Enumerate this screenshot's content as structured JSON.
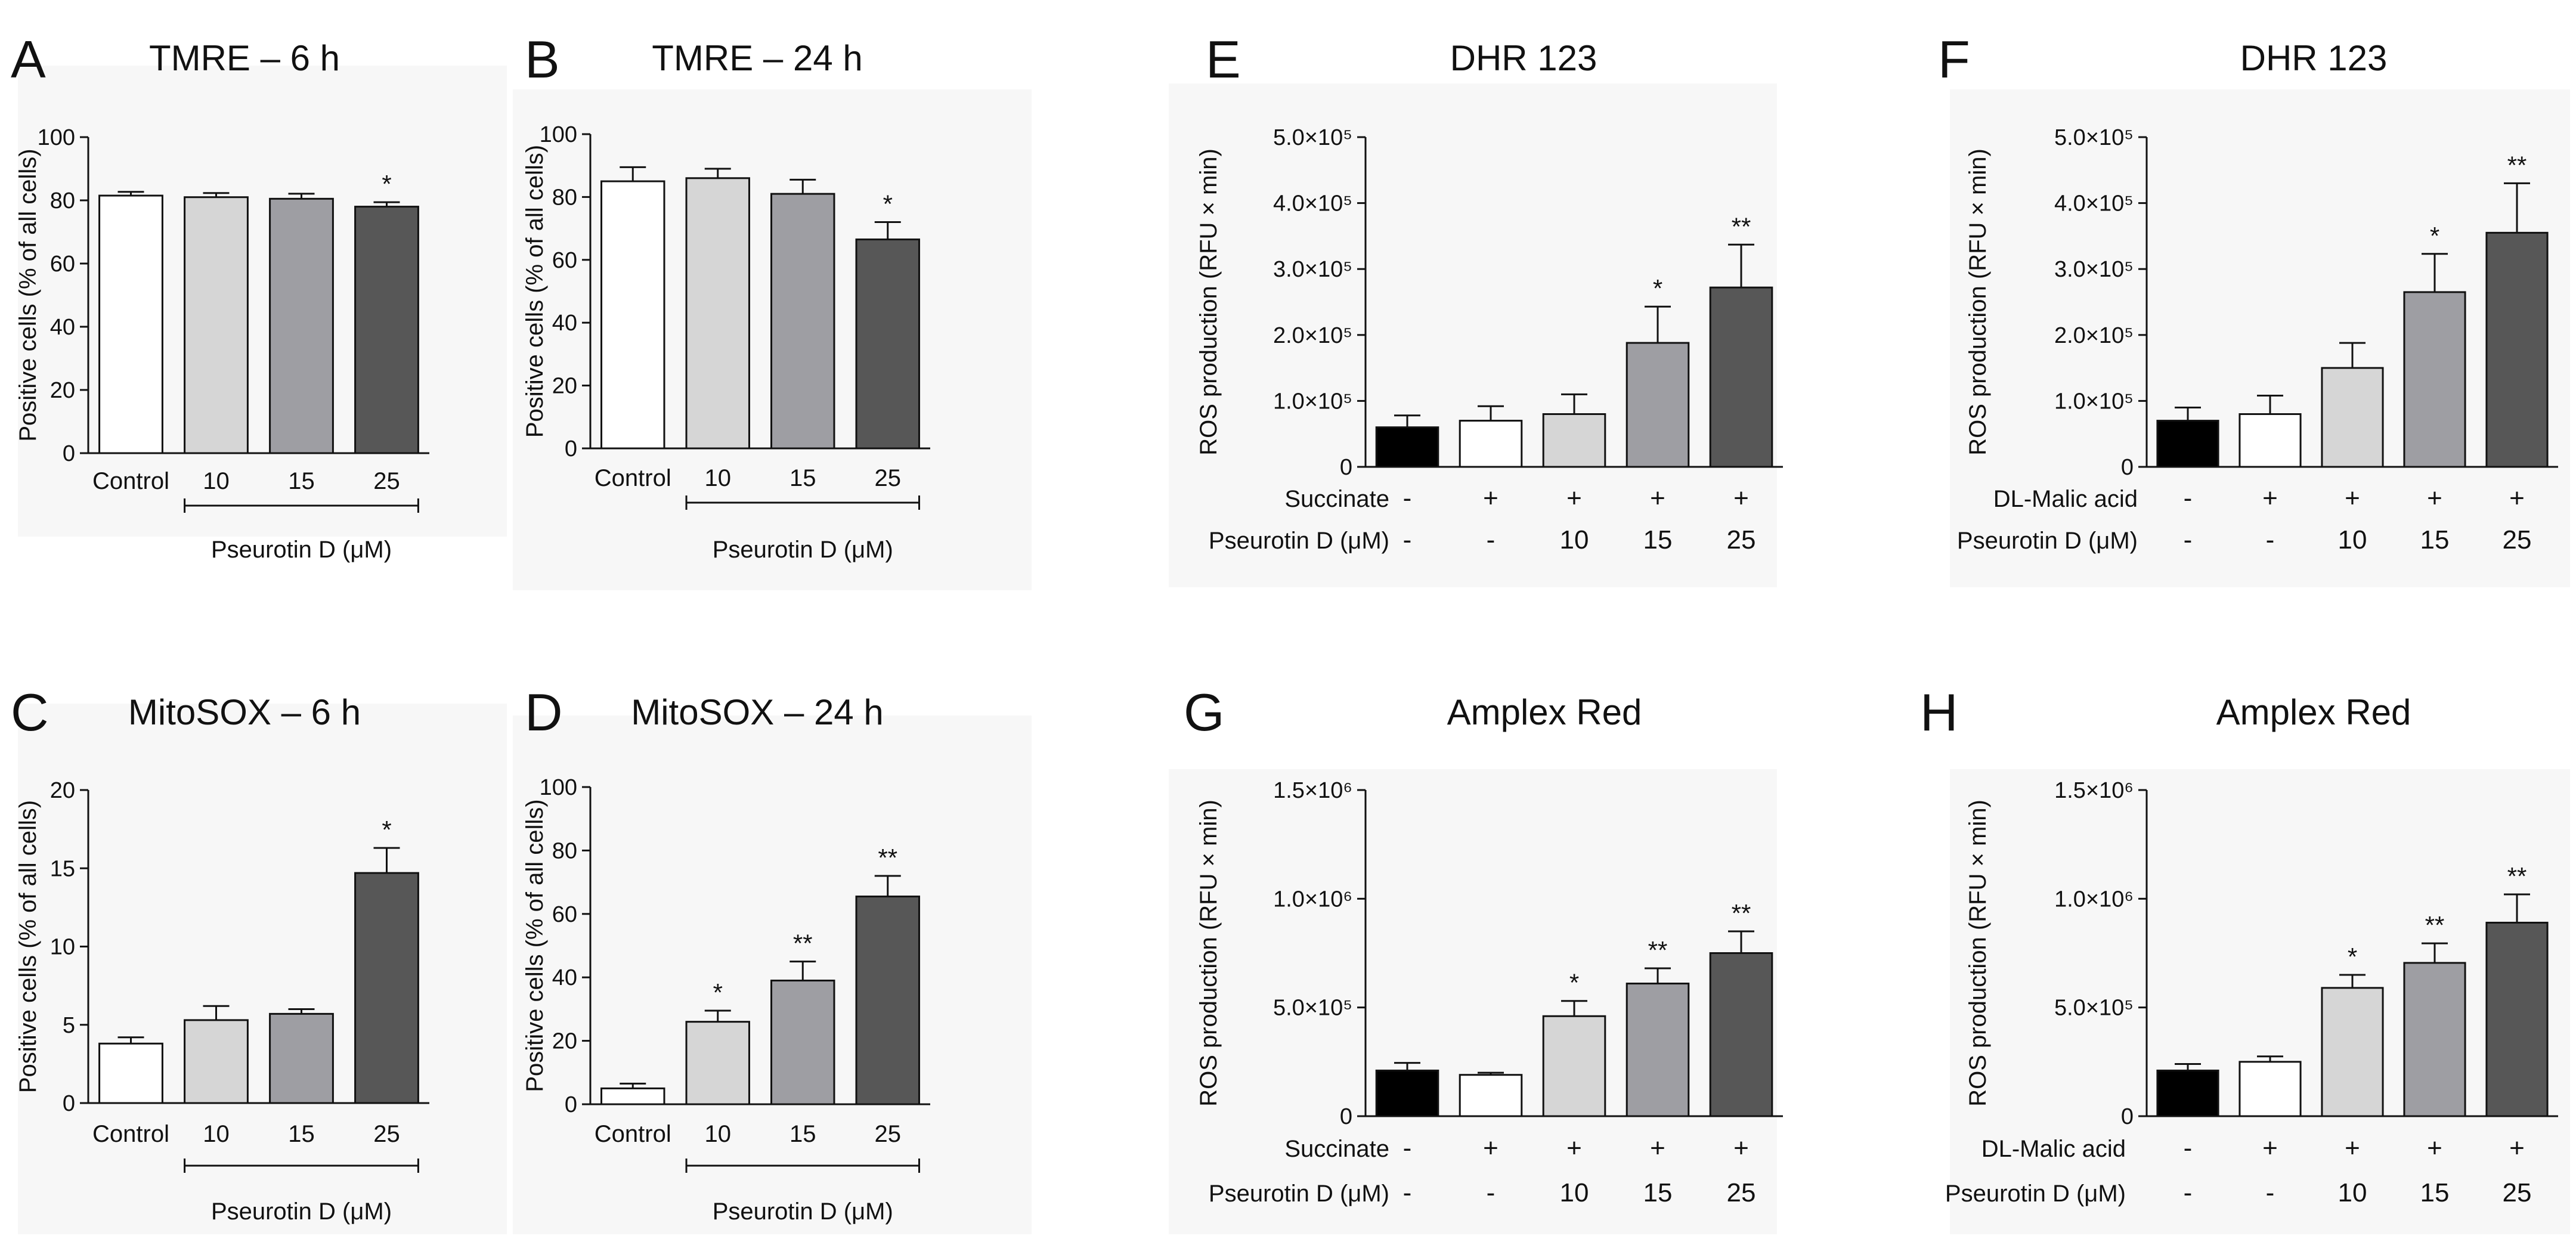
{
  "colors": {
    "white": "#ffffff",
    "lightgray": "#d6d6d6",
    "midgray": "#9e9ea3",
    "darkgray": "#575757",
    "black": "#000000",
    "axis": "#111111"
  },
  "chart_data": [
    {
      "id": "A",
      "type": "bar",
      "letter": "A",
      "title": "TMRE – 6 h",
      "ylabel": "Positive cells (% of all cells)",
      "ylim": [
        0,
        100
      ],
      "yticks": [
        0,
        20,
        40,
        60,
        80,
        100
      ],
      "yticklabels": [
        "0",
        "20",
        "40",
        "60",
        "80",
        "100"
      ],
      "categories": [
        "Control",
        "10",
        "15",
        "25"
      ],
      "values": [
        81.5,
        81,
        80.5,
        78
      ],
      "errors": [
        1.2,
        1.3,
        1.6,
        1.4
      ],
      "fills": [
        "white",
        "lightgray",
        "midgray",
        "darkgray"
      ],
      "significance": [
        "",
        "",
        "",
        "*"
      ],
      "xgroup_label": "Pseurotin D (μM)"
    },
    {
      "id": "B",
      "type": "bar",
      "letter": "B",
      "title": "TMRE – 24 h",
      "ylabel": "Positive cells (% of all cells)",
      "ylim": [
        0,
        100
      ],
      "yticks": [
        0,
        20,
        40,
        60,
        80,
        100
      ],
      "yticklabels": [
        "0",
        "20",
        "40",
        "60",
        "80",
        "100"
      ],
      "categories": [
        "Control",
        "10",
        "15",
        "25"
      ],
      "values": [
        85,
        86,
        81,
        66.5
      ],
      "errors": [
        4.5,
        3,
        4.5,
        5.5
      ],
      "fills": [
        "white",
        "lightgray",
        "midgray",
        "darkgray"
      ],
      "significance": [
        "",
        "",
        "",
        "*"
      ],
      "xgroup_label": "Pseurotin D (μM)"
    },
    {
      "id": "C",
      "type": "bar",
      "letter": "C",
      "title": "MitoSOX – 6 h",
      "ylabel": "Positive cells (% of all cells)",
      "ylim": [
        0,
        20
      ],
      "yticks": [
        0,
        5,
        10,
        15,
        20
      ],
      "yticklabels": [
        "0",
        "5",
        "10",
        "15",
        "20"
      ],
      "categories": [
        "Control",
        "10",
        "15",
        "25"
      ],
      "values": [
        3.8,
        5.3,
        5.7,
        14.7
      ],
      "errors": [
        0.4,
        0.9,
        0.3,
        1.6
      ],
      "fills": [
        "white",
        "lightgray",
        "midgray",
        "darkgray"
      ],
      "significance": [
        "",
        "",
        "",
        "*"
      ],
      "xgroup_label": "Pseurotin D (μM)"
    },
    {
      "id": "D",
      "type": "bar",
      "letter": "D",
      "title": "MitoSOX – 24 h",
      "ylabel": "Positive cells (% of all cells)",
      "ylim": [
        0,
        100
      ],
      "yticks": [
        0,
        20,
        40,
        60,
        80,
        100
      ],
      "yticklabels": [
        "0",
        "20",
        "40",
        "60",
        "80",
        "100"
      ],
      "categories": [
        "Control",
        "10",
        "15",
        "25"
      ],
      "values": [
        5,
        26,
        39,
        65.5
      ],
      "errors": [
        1.5,
        3.5,
        6,
        6.5
      ],
      "fills": [
        "white",
        "lightgray",
        "midgray",
        "darkgray"
      ],
      "significance": [
        "",
        "*",
        "**",
        "**"
      ],
      "xgroup_label": "Pseurotin D (μM)"
    },
    {
      "id": "E",
      "type": "bar",
      "letter": "E",
      "title": "DHR 123",
      "ylabel": "ROS production (RFU × min)",
      "ylim": [
        0,
        500000
      ],
      "yticks": [
        0,
        100000,
        200000,
        300000,
        400000,
        500000
      ],
      "yticklabels": [
        "0",
        "1.0×10⁵",
        "2.0×10⁵",
        "3.0×10⁵",
        "4.0×10⁵",
        "5.0×10⁵"
      ],
      "values": [
        60000,
        70000,
        80000,
        188000,
        272000
      ],
      "errors": [
        18000,
        22000,
        30000,
        55000,
        65000
      ],
      "fills": [
        "black",
        "white",
        "lightgray",
        "midgray",
        "darkgray"
      ],
      "significance": [
        "",
        "",
        "",
        "*",
        "**"
      ],
      "rows": [
        {
          "label": "Succinate",
          "values": [
            "-",
            "+",
            "+",
            "+",
            "+"
          ]
        },
        {
          "label": "Pseurotin D (μM)",
          "values": [
            "-",
            "-",
            "10",
            "15",
            "25"
          ]
        }
      ]
    },
    {
      "id": "F",
      "type": "bar",
      "letter": "F",
      "title": "DHR 123",
      "ylabel": "ROS production (RFU × min)",
      "ylim": [
        0,
        500000
      ],
      "yticks": [
        0,
        100000,
        200000,
        300000,
        400000,
        500000
      ],
      "yticklabels": [
        "0",
        "1.0×10⁵",
        "2.0×10⁵",
        "3.0×10⁵",
        "4.0×10⁵",
        "5.0×10⁵"
      ],
      "values": [
        70000,
        80000,
        150000,
        265000,
        355000
      ],
      "errors": [
        20000,
        28000,
        38000,
        58000,
        75000
      ],
      "fills": [
        "black",
        "white",
        "lightgray",
        "midgray",
        "darkgray"
      ],
      "significance": [
        "",
        "",
        "",
        "*",
        "**"
      ],
      "rows": [
        {
          "label": "DL-Malic acid",
          "values": [
            "-",
            "+",
            "+",
            "+",
            "+"
          ]
        },
        {
          "label": "Pseurotin D (μM)",
          "values": [
            "-",
            "-",
            "10",
            "15",
            "25"
          ]
        }
      ]
    },
    {
      "id": "G",
      "type": "bar",
      "letter": "G",
      "title": "Amplex Red",
      "ylabel": "ROS production (RFU × min)",
      "ylim": [
        0,
        1500000
      ],
      "yticks": [
        0,
        500000,
        1000000,
        1500000
      ],
      "yticklabels": [
        "0",
        "5.0×10⁵",
        "1.0×10⁶",
        "1.5×10⁶"
      ],
      "values": [
        210000,
        190000,
        460000,
        610000,
        750000
      ],
      "errors": [
        35000,
        10000,
        70000,
        70000,
        100000
      ],
      "fills": [
        "black",
        "white",
        "lightgray",
        "midgray",
        "darkgray"
      ],
      "significance": [
        "",
        "",
        "*",
        "**",
        "**"
      ],
      "rows": [
        {
          "label": "Succinate",
          "values": [
            "-",
            "+",
            "+",
            "+",
            "+"
          ]
        },
        {
          "label": "Pseurotin D (μM)",
          "values": [
            "-",
            "-",
            "10",
            "15",
            "25"
          ]
        }
      ]
    },
    {
      "id": "H",
      "type": "bar",
      "letter": "H",
      "title": "Amplex Red",
      "ylabel": "ROS production (RFU × min)",
      "ylim": [
        0,
        1500000
      ],
      "yticks": [
        0,
        500000,
        1000000,
        1500000
      ],
      "yticklabels": [
        "0",
        "5.0×10⁵",
        "1.0×10⁶",
        "1.5×10⁶"
      ],
      "values": [
        210000,
        250000,
        590000,
        705000,
        890000
      ],
      "errors": [
        30000,
        25000,
        60000,
        90000,
        130000
      ],
      "fills": [
        "black",
        "white",
        "lightgray",
        "midgray",
        "darkgray"
      ],
      "significance": [
        "",
        "",
        "*",
        "**",
        "**"
      ],
      "rows": [
        {
          "label": "DL-Malic acid",
          "values": [
            "-",
            "+",
            "+",
            "+",
            "+"
          ]
        },
        {
          "label": "Pseurotin D (μM)",
          "values": [
            "-",
            "-",
            "10",
            "15",
            "25"
          ]
        }
      ]
    }
  ]
}
